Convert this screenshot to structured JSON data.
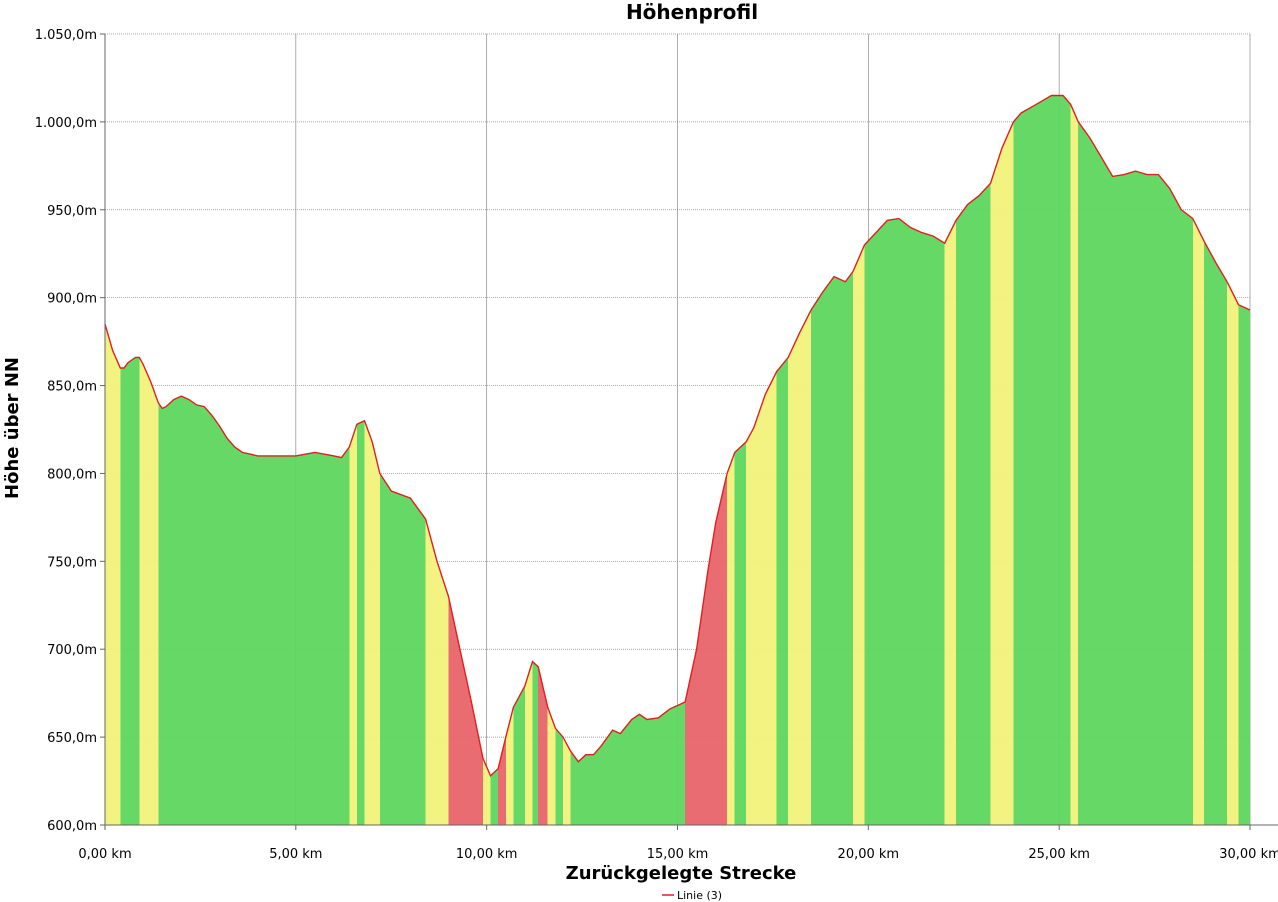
{
  "chart_data": {
    "type": "area",
    "title": "Höhenprofil",
    "xlabel": "Zurückgelegte Strecke",
    "ylabel": "Höhe über NN",
    "xlim": [
      0,
      30
    ],
    "ylim": [
      600,
      1050
    ],
    "x_ticks": [
      0,
      5,
      10,
      15,
      20,
      25,
      30
    ],
    "x_tick_labels": [
      "0,00 km",
      "5,00 km",
      "10,00 km",
      "15,00 km",
      "20,00 km",
      "25,00 km",
      "30,00 km"
    ],
    "y_ticks": [
      600,
      650,
      700,
      750,
      800,
      850,
      900,
      950,
      1000,
      1050
    ],
    "y_tick_labels": [
      "600,0m",
      "650,0m",
      "700,0m",
      "750,0m",
      "800,0m",
      "850,0m",
      "900,0m",
      "950,0m",
      "1.000,0m",
      "1.050,0m"
    ],
    "grid": true,
    "legend": {
      "position": "bottom-center",
      "entries": [
        "Linie (3)"
      ]
    },
    "line_color": "#e0201e",
    "fill_colors": {
      "flat": "#5ed65e",
      "moderate": "#f2f27a",
      "steep": "#e8646a"
    },
    "series": [
      {
        "name": "Linie (3)",
        "x": [
          0.0,
          0.2,
          0.4,
          0.5,
          0.6,
          0.8,
          0.9,
          1.0,
          1.2,
          1.4,
          1.5,
          1.6,
          1.8,
          2.0,
          2.2,
          2.4,
          2.6,
          2.8,
          3.0,
          3.2,
          3.4,
          3.6,
          3.8,
          4.0,
          4.5,
          5.0,
          5.5,
          6.0,
          6.2,
          6.4,
          6.6,
          6.8,
          7.0,
          7.2,
          7.5,
          8.0,
          8.4,
          8.7,
          9.0,
          9.3,
          9.6,
          9.9,
          10.1,
          10.3,
          10.5,
          10.7,
          11.0,
          11.2,
          11.35,
          11.6,
          11.8,
          12.0,
          12.2,
          12.4,
          12.6,
          12.8,
          13.0,
          13.3,
          13.5,
          13.8,
          14.0,
          14.2,
          14.5,
          14.8,
          15.0,
          15.2,
          15.5,
          15.8,
          16.0,
          16.3,
          16.5,
          16.8,
          17.0,
          17.3,
          17.6,
          17.9,
          18.2,
          18.5,
          18.8,
          19.1,
          19.4,
          19.6,
          19.9,
          20.2,
          20.5,
          20.8,
          21.1,
          21.4,
          21.7,
          22.0,
          22.3,
          22.6,
          22.9,
          23.2,
          23.5,
          23.8,
          24.0,
          24.4,
          24.8,
          25.1,
          25.3,
          25.5,
          25.8,
          26.1,
          26.4,
          26.7,
          27.0,
          27.3,
          27.6,
          27.9,
          28.2,
          28.5,
          28.8,
          29.1,
          29.4,
          29.7,
          30.0
        ],
        "y": [
          885,
          870,
          860,
          860,
          863,
          866,
          866,
          862,
          852,
          840,
          837,
          838,
          842,
          844,
          842,
          839,
          838,
          833,
          827,
          820,
          815,
          812,
          811,
          810,
          810,
          810,
          812,
          810,
          809,
          815,
          828,
          830,
          818,
          800,
          790,
          786,
          774,
          750,
          730,
          700,
          670,
          638,
          628,
          632,
          650,
          667,
          679,
          693,
          690,
          667,
          655,
          650,
          642,
          636,
          640,
          640,
          645,
          654,
          652,
          660,
          663,
          660,
          661,
          666,
          668,
          670,
          700,
          745,
          772,
          800,
          812,
          818,
          826,
          845,
          858,
          866,
          880,
          893,
          903,
          912,
          909,
          915,
          930,
          937,
          944,
          945,
          940,
          937,
          935,
          931,
          944,
          953,
          958,
          965,
          985,
          1000,
          1005,
          1010,
          1015,
          1015,
          1010,
          1000,
          991,
          980,
          969,
          970,
          972,
          970,
          970,
          962,
          950,
          945,
          932,
          920,
          909,
          896,
          893
        ]
      }
    ]
  }
}
